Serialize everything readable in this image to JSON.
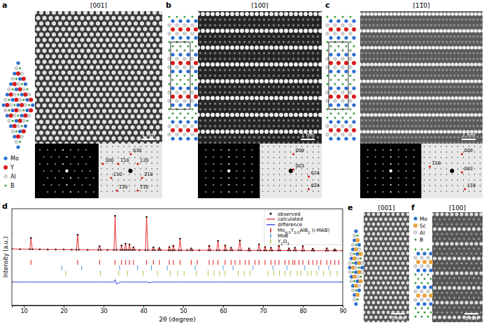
{
  "panels": {
    "a": {
      "label": "a",
      "zone": "[001]",
      "scale_bar": "1 nm",
      "spots": [
        "030",
        "300",
        "1̅10",
        "120",
        "210",
        "2̅10",
        "1̅2̅0",
        "1̅1̅0"
      ],
      "legend": [
        {
          "name": "Mo",
          "color": "#2b6fce"
        },
        {
          "name": "Y",
          "color": "#d7191c"
        },
        {
          "name": "Al",
          "color": "#d9d9d9"
        },
        {
          "name": "B",
          "color": "#3c9a3c"
        }
      ]
    },
    "b": {
      "label": "b",
      "zone": "[100]",
      "scale_bar": "1 nm",
      "spots": [
        "009",
        "003",
        "024",
        "02̅4"
      ]
    },
    "c": {
      "label": "c",
      "zone": "[11̅0]",
      "scale_bar": "1 nm",
      "spots": [
        "009",
        "1̅16",
        "003",
        "11̅0"
      ]
    },
    "d": {
      "label": "d"
    },
    "e": {
      "label": "e",
      "zone": "[001]",
      "scale_bar": "1 nm"
    },
    "f": {
      "label": "f",
      "zone": "[100]",
      "scale_bar": "1 nm",
      "legend": [
        {
          "name": "Mo",
          "color": "#2b6fce"
        },
        {
          "name": "Sc",
          "color": "#e8a33c"
        },
        {
          "name": "Al",
          "color": "#d9d9d9"
        },
        {
          "name": "B",
          "color": "#3c9a3c"
        }
      ]
    }
  },
  "chart_data": {
    "type": "line",
    "x_label": "2θ (degree)",
    "y_label": "Intensity (a.u.)",
    "xlim": [
      7,
      90
    ],
    "xticks": [
      10,
      20,
      30,
      40,
      50,
      60,
      70,
      80,
      90
    ],
    "ylim": [
      -1.5,
      1.2
    ],
    "tick_labels": "x",
    "legend": "upper right",
    "x": [
      7,
      9,
      11.5,
      11.8,
      12.1,
      14,
      16,
      18,
      20,
      22,
      23.2,
      23.5,
      23.8,
      26,
      28.7,
      29,
      29.3,
      31,
      32.6,
      32.9,
      33.2,
      34.3,
      34.5,
      34.8,
      35.3,
      35.5,
      35.8,
      36.3,
      36.5,
      36.8,
      37.3,
      37.5,
      37.8,
      39,
      40.5,
      40.8,
      41.1,
      42.3,
      42.5,
      42.8,
      43.8,
      44,
      44.3,
      46.3,
      46.5,
      46.8,
      47.3,
      47.5,
      47.8,
      48.9,
      49.2,
      49.5,
      51,
      51.8,
      52,
      52.3,
      54,
      56.3,
      56.5,
      56.8,
      58.4,
      58.7,
      59,
      60.3,
      60.5,
      60.8,
      61.8,
      62,
      62.3,
      63.9,
      64.2,
      64.5,
      66.3,
      66.5,
      66.8,
      68.7,
      69,
      69.3,
      70.3,
      70.5,
      70.8,
      71.8,
      72,
      72.3,
      73.8,
      74,
      74.3,
      76.3,
      76.5,
      76.8,
      77.8,
      78,
      78.3,
      79.8,
      80,
      80.3,
      82.3,
      82.5,
      82.8,
      85.8,
      86,
      86.3,
      87.8,
      88,
      88.3,
      90
    ],
    "series": [
      {
        "name": "observed",
        "type": "scatter",
        "marker": "dot",
        "color": "#000000",
        "values": [
          0.08,
          0.07,
          0.07,
          0.38,
          0.07,
          0.065,
          0.06,
          0.06,
          0.06,
          0.055,
          0.055,
          0.47,
          0.055,
          0.05,
          0.05,
          0.15,
          0.05,
          0.05,
          0.05,
          1.0,
          0.05,
          0.05,
          0.17,
          0.05,
          0.05,
          0.22,
          0.05,
          0.05,
          0.2,
          0.05,
          0.05,
          0.12,
          0.05,
          0.045,
          0.045,
          0.97,
          0.045,
          0.045,
          0.12,
          0.045,
          0.045,
          0.1,
          0.045,
          0.04,
          0.13,
          0.04,
          0.04,
          0.16,
          0.04,
          0.04,
          0.36,
          0.04,
          0.04,
          0.04,
          0.09,
          0.04,
          0.04,
          0.04,
          0.16,
          0.04,
          0.04,
          0.3,
          0.04,
          0.04,
          0.17,
          0.04,
          0.04,
          0.11,
          0.04,
          0.04,
          0.31,
          0.04,
          0.035,
          0.09,
          0.035,
          0.035,
          0.2,
          0.035,
          0.035,
          0.13,
          0.035,
          0.035,
          0.11,
          0.035,
          0.035,
          0.16,
          0.035,
          0.035,
          0.09,
          0.035,
          0.035,
          0.11,
          0.035,
          0.03,
          0.15,
          0.03,
          0.03,
          0.08,
          0.03,
          0.03,
          0.09,
          0.03,
          0.03,
          0.06,
          0.03,
          0.03
        ]
      },
      {
        "name": "calculated",
        "type": "line",
        "line_style": "solid",
        "color": "#e41a1c",
        "values": [
          0.08,
          0.07,
          0.07,
          0.37,
          0.07,
          0.065,
          0.06,
          0.06,
          0.06,
          0.055,
          0.055,
          0.46,
          0.055,
          0.05,
          0.05,
          0.14,
          0.05,
          0.05,
          0.05,
          0.97,
          0.05,
          0.05,
          0.16,
          0.05,
          0.05,
          0.21,
          0.05,
          0.05,
          0.2,
          0.05,
          0.05,
          0.12,
          0.05,
          0.045,
          0.045,
          0.95,
          0.045,
          0.045,
          0.12,
          0.045,
          0.045,
          0.1,
          0.045,
          0.04,
          0.13,
          0.04,
          0.04,
          0.16,
          0.04,
          0.04,
          0.35,
          0.04,
          0.04,
          0.04,
          0.09,
          0.04,
          0.04,
          0.04,
          0.16,
          0.04,
          0.04,
          0.29,
          0.04,
          0.04,
          0.17,
          0.04,
          0.04,
          0.11,
          0.04,
          0.04,
          0.3,
          0.04,
          0.035,
          0.09,
          0.035,
          0.035,
          0.2,
          0.035,
          0.035,
          0.13,
          0.035,
          0.035,
          0.11,
          0.035,
          0.035,
          0.16,
          0.035,
          0.035,
          0.09,
          0.035,
          0.035,
          0.11,
          0.035,
          0.03,
          0.15,
          0.03,
          0.03,
          0.08,
          0.03,
          0.03,
          0.09,
          0.03,
          0.03,
          0.06,
          0.03,
          0.03
        ]
      },
      {
        "name": "difference",
        "type": "line",
        "line_style": "solid",
        "color": "#1a2fd6",
        "values": [
          -0.85,
          -0.85,
          -0.85,
          -0.84,
          -0.85,
          -0.85,
          -0.85,
          -0.85,
          -0.85,
          -0.85,
          -0.85,
          -0.84,
          -0.85,
          -0.85,
          -0.85,
          -0.84,
          -0.85,
          -0.85,
          -0.85,
          -0.78,
          -0.9,
          -0.85,
          -0.84,
          -0.85,
          -0.85,
          -0.84,
          -0.85,
          -0.85,
          -0.85,
          -0.85,
          -0.85,
          -0.85,
          -0.85,
          -0.85,
          -0.85,
          -0.83,
          -0.87,
          -0.85,
          -0.85,
          -0.85,
          -0.85,
          -0.85,
          -0.85,
          -0.85,
          -0.85,
          -0.85,
          -0.85,
          -0.85,
          -0.85,
          -0.85,
          -0.84,
          -0.85,
          -0.85,
          -0.85,
          -0.85,
          -0.85,
          -0.85,
          -0.85,
          -0.85,
          -0.85,
          -0.85,
          -0.84,
          -0.85,
          -0.85,
          -0.85,
          -0.85,
          -0.85,
          -0.85,
          -0.85,
          -0.85,
          -0.84,
          -0.85,
          -0.85,
          -0.85,
          -0.85,
          -0.85,
          -0.85,
          -0.85,
          -0.85,
          -0.85,
          -0.85,
          -0.85,
          -0.85,
          -0.85,
          -0.85,
          -0.85,
          -0.85,
          -0.85,
          -0.85,
          -0.85,
          -0.85,
          -0.85,
          -0.85,
          -0.85,
          -0.85,
          -0.85,
          -0.85,
          -0.85,
          -0.85,
          -0.85,
          -0.85,
          -0.85,
          -0.85,
          -0.85,
          -0.85,
          -0.85
        ]
      }
    ],
    "reflections": [
      {
        "name": "Mo4/3Y2/3AlB2 (i-MAB)",
        "color": "#e41a1c",
        "positions": [
          11.8,
          23.5,
          29.0,
          32.9,
          34.5,
          35.5,
          36.5,
          37.5,
          40.8,
          42.5,
          44.0,
          46.5,
          47.5,
          49.2,
          52.0,
          53.5,
          56.5,
          57.5,
          58.7,
          60.5,
          62.0,
          63.0,
          64.2,
          65.5,
          66.5,
          68.0,
          69.0,
          70.5,
          72.0,
          73.0,
          74.0,
          75.5,
          76.5,
          77.5,
          78.0,
          79.0,
          80.0,
          81.5,
          82.5,
          83.5,
          84.5,
          86.0,
          87.0,
          88.0,
          89.0
        ]
      },
      {
        "name": "MoB",
        "color": "#4d9de0",
        "positions": [
          19.5,
          24.5,
          34.0,
          38.5,
          42.0,
          46.0,
          53.0,
          60.0,
          62.5,
          67.5,
          72.5,
          76.0,
          80.5,
          84.0,
          86.5
        ]
      },
      {
        "name": "Y2O3",
        "color": "#a5c63b",
        "positions": [
          20.5,
          29.2,
          33.8,
          36.0,
          39.9,
          43.5,
          46.8,
          48.6,
          50.2,
          53.3,
          56.2,
          57.7,
          59.1,
          60.5,
          63.8,
          65.3,
          66.8,
          71.2,
          72.7,
          74.1,
          75.5,
          76.9,
          78.6,
          79.5,
          81.2,
          82.1,
          83.5,
          85.2,
          86.9,
          88.6
        ]
      }
    ]
  }
}
